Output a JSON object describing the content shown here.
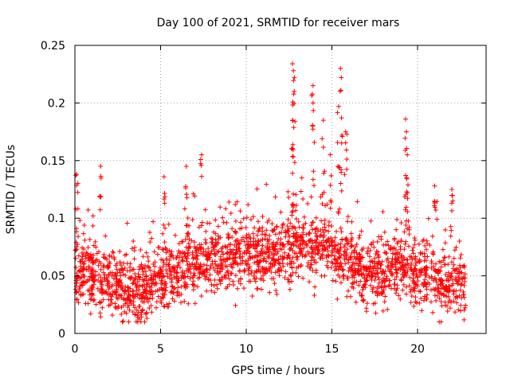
{
  "chart_data": {
    "type": "scatter",
    "title": "Day 100 of 2021, SRMTID for receiver mars",
    "xlabel": "GPS time / hours",
    "ylabel": "SRMTID / TECUs",
    "xlim": [
      0,
      24
    ],
    "ylim": [
      0,
      0.25
    ],
    "xticks": [
      0,
      5,
      10,
      15,
      20
    ],
    "xtick_labels": [
      "0",
      "5",
      "10",
      "15",
      "20"
    ],
    "yticks": [
      0,
      0.05,
      0.1,
      0.15,
      0.2,
      0.25
    ],
    "ytick_labels": [
      "0",
      "0.05",
      "0.1",
      "0.15",
      "0.2",
      "0.25"
    ],
    "grid": true,
    "marker": "+",
    "color": "#ff0000",
    "x_range_of_data": [
      0,
      22.8
    ],
    "trend": {
      "x": [
        0,
        1,
        2,
        3,
        4,
        5,
        6,
        7,
        8,
        9,
        10,
        11,
        12,
        13,
        14,
        15,
        16,
        17,
        18,
        19,
        20,
        21,
        22,
        22.8
      ],
      "y": [
        0.055,
        0.052,
        0.045,
        0.038,
        0.036,
        0.048,
        0.055,
        0.06,
        0.065,
        0.068,
        0.068,
        0.066,
        0.07,
        0.075,
        0.075,
        0.072,
        0.06,
        0.052,
        0.055,
        0.06,
        0.052,
        0.045,
        0.042,
        0.045
      ]
    },
    "spikes": [
      {
        "x": 0.1,
        "y": 0.138
      },
      {
        "x": 1.5,
        "y": 0.145
      },
      {
        "x": 5.2,
        "y": 0.136
      },
      {
        "x": 6.5,
        "y": 0.145
      },
      {
        "x": 7.4,
        "y": 0.155
      },
      {
        "x": 12.7,
        "y": 0.234
      },
      {
        "x": 12.75,
        "y": 0.228
      },
      {
        "x": 12.8,
        "y": 0.21
      },
      {
        "x": 12.7,
        "y": 0.185
      },
      {
        "x": 13.9,
        "y": 0.215
      },
      {
        "x": 13.9,
        "y": 0.2
      },
      {
        "x": 14.5,
        "y": 0.185
      },
      {
        "x": 15.5,
        "y": 0.23
      },
      {
        "x": 15.55,
        "y": 0.222
      },
      {
        "x": 15.4,
        "y": 0.197
      },
      {
        "x": 15.8,
        "y": 0.175
      },
      {
        "x": 14.9,
        "y": 0.155
      },
      {
        "x": 19.3,
        "y": 0.186
      },
      {
        "x": 19.35,
        "y": 0.175
      },
      {
        "x": 19.4,
        "y": 0.155
      },
      {
        "x": 21.0,
        "y": 0.128
      },
      {
        "x": 22.0,
        "y": 0.125
      }
    ]
  }
}
